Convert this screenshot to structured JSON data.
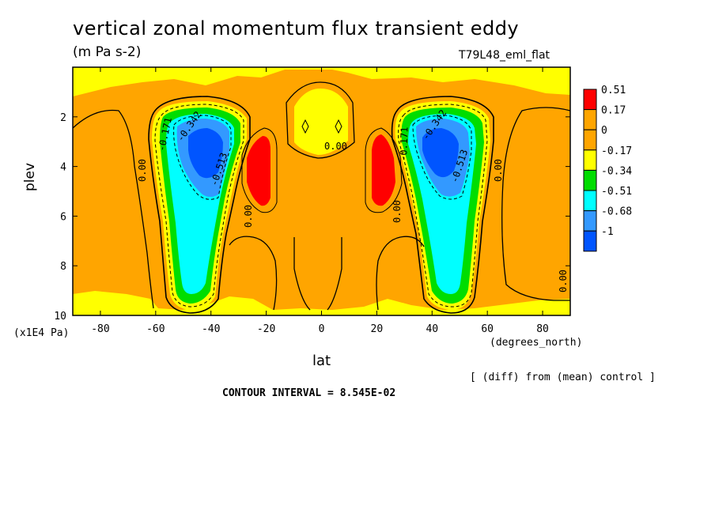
{
  "header": {
    "title": "vertical zonal momentum flux transient eddy",
    "units": "(m Pa s-2)",
    "run": "T79L48_eml_flat"
  },
  "footer": {
    "diff_note": "[ (diff) from (mean) control ]",
    "contour_interval": "CONTOUR INTERVAL = 8.545E-02"
  },
  "chart_data": {
    "type": "heatmap",
    "title": "vertical zonal momentum flux transient eddy",
    "subtitle": "(m Pa s-2)",
    "xlabel": "lat",
    "xunit": "(degrees_north)",
    "ylabel": "plev",
    "yunit": "(x1E4 Pa)",
    "xlim": [
      -90,
      90
    ],
    "ylim": [
      10,
      0
    ],
    "xticks": [
      -80,
      -60,
      -40,
      -20,
      0,
      20,
      40,
      60,
      80
    ],
    "yticks": [
      2,
      4,
      6,
      8,
      10
    ],
    "colorbar": {
      "labels": [
        "0.51",
        "0.17",
        "0",
        "-0.17",
        "-0.34",
        "-0.51",
        "-0.68",
        "-1"
      ],
      "colors": [
        "#ff0000",
        "#ffa500",
        "#ffa500",
        "#ffff00",
        "#00dd00",
        "#00ffff",
        "#3399ff",
        "#0055ff"
      ]
    },
    "contour_labels": [
      "-0.171",
      "-0.342",
      "-0.513",
      "-0.342",
      "-0.171",
      "-0.513",
      "0.00",
      "0.00",
      "0.00",
      "0.00",
      "0.00",
      "0.00"
    ],
    "features": [
      {
        "name": "SH jet negative core",
        "lat": -42,
        "plev": 3.5,
        "value": -1.0
      },
      {
        "name": "NH jet negative core",
        "lat": 42,
        "plev": 3.5,
        "value": -1.0
      },
      {
        "name": "SH subtropical positive max",
        "lat": -24,
        "plev": 4.2,
        "value": 0.51
      },
      {
        "name": "NH subtropical positive max",
        "lat": 24,
        "plev": 4.2,
        "value": 0.51
      }
    ],
    "grid": false,
    "legend_position": "right"
  }
}
